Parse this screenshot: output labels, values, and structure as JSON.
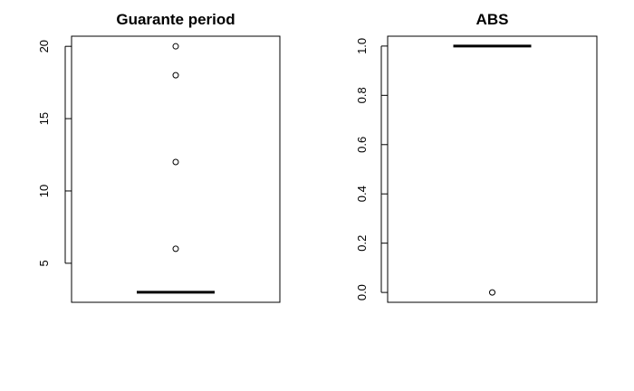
{
  "chart_data": [
    {
      "type": "box",
      "title": "Guarante period",
      "xlabel": "",
      "ylabel": "",
      "ylim": [
        2.3,
        20.7
      ],
      "yticks": [
        5,
        10,
        15,
        20
      ],
      "ytick_labels": [
        "5",
        "10",
        "15",
        "20"
      ],
      "box": {
        "min": 3,
        "q1": 3,
        "median": 3,
        "q3": 3,
        "max": 3
      },
      "outliers": [
        6,
        12,
        18,
        20
      ],
      "grid": false
    },
    {
      "type": "box",
      "title": "ABS",
      "xlabel": "",
      "ylabel": "",
      "ylim": [
        -0.04,
        1.04
      ],
      "yticks": [
        0.0,
        0.2,
        0.4,
        0.6,
        0.8,
        1.0
      ],
      "ytick_labels": [
        "0.0",
        "0.2",
        "0.4",
        "0.6",
        "0.8",
        "1.0"
      ],
      "box": {
        "min": 1,
        "q1": 1,
        "median": 1,
        "q3": 1,
        "max": 1
      },
      "outliers": [
        0
      ],
      "grid": false
    }
  ]
}
